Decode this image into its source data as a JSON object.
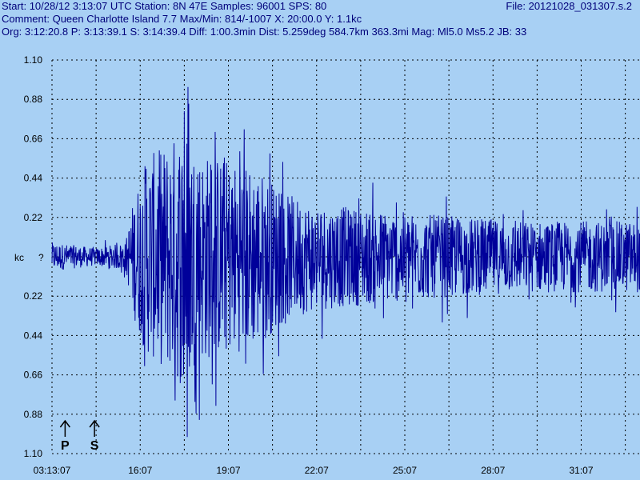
{
  "header": {
    "start_label": "Start:",
    "start_value": "10/28/12  3:13:07 UTC",
    "station_label": "Station:",
    "station_value": "8N 47E",
    "samples_label": "Samples:",
    "samples_value": "96001",
    "sps_label": "SPS:",
    "sps_value": "80",
    "file_label": "File:",
    "file_value": "20121028_031307.s.2",
    "comment_label": "Comment:",
    "comment_value": "Queen Charlotte Island 7.7",
    "maxmin_label": "Max/Min:",
    "maxmin_value": "814/-1007",
    "x_label": "X:",
    "x_value": "20:00.0",
    "y_label": "Y:",
    "y_value": "1.1kc",
    "org_label": "Org:",
    "org_value": "3:12:20.8",
    "p_label": "P:",
    "p_value": "3:13:39.1",
    "s_label": "S:",
    "s_value": "3:14:39.4",
    "diff_label": "Diff:",
    "diff_value": "1:00.3min",
    "dist_label": "Dist:",
    "dist_value": "5.259deg 584.7km 363.3mi",
    "mag_label": "Mag:",
    "mag_value": "Ml5.0 Ms5.2",
    "jb_label": "JB:",
    "jb_value": "33"
  },
  "chart_data": {
    "type": "line",
    "ylabel": "kc",
    "center_label": "?",
    "ylim": [
      -1.1,
      1.1
    ],
    "y_ticks": [
      1.1,
      0.88,
      0.66,
      0.44,
      0.22,
      0.0,
      -0.22,
      -0.44,
      -0.66,
      -0.88,
      -1.1
    ],
    "y_tick_labels": [
      "1.10",
      "0.88",
      "0.66",
      "0.44",
      "0.22",
      "",
      "0.22",
      "0.44",
      "0.66",
      "0.88",
      "1.10"
    ],
    "x_tick_labels": [
      "03:13:07",
      "16:07",
      "19:07",
      "22:07",
      "25:07",
      "28:07",
      "31:07"
    ],
    "x_ticks_min": [
      0,
      3,
      6,
      9,
      12,
      15,
      18
    ],
    "xlim_min": [
      0,
      20
    ],
    "grid": true,
    "phase_markers": [
      {
        "label": "P",
        "time_min": 0.5
      },
      {
        "label": "S",
        "time_min": 1.5
      }
    ],
    "envelope": {
      "time_min": [
        0,
        1.5,
        2.5,
        2.8,
        3.2,
        4.0,
        4.5,
        5.0,
        6.0,
        7.0,
        8.0,
        9.0,
        10.0,
        12.0,
        14.0,
        16.0,
        18.0,
        20.0
      ],
      "amp_kc": [
        0.08,
        0.05,
        0.08,
        0.35,
        0.55,
        0.65,
        0.75,
        0.6,
        0.55,
        0.5,
        0.35,
        0.3,
        0.28,
        0.25,
        0.22,
        0.2,
        0.2,
        0.2
      ]
    },
    "max_kc": 0.814,
    "min_kc": -1.007,
    "colors": {
      "trace": "#00009a",
      "grid": "#000000",
      "background": "#a8d0f4",
      "text": "#00007a"
    }
  }
}
